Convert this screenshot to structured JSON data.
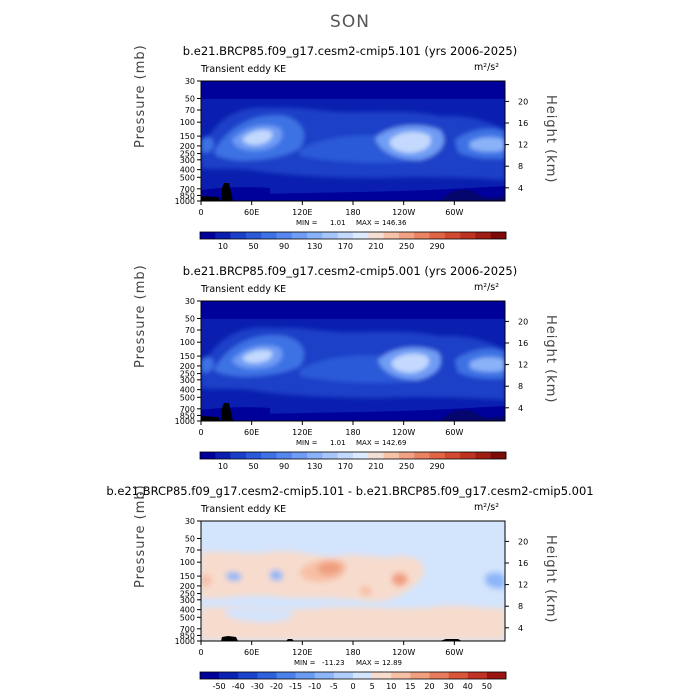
{
  "figure_title": "SON",
  "chart_data": [
    {
      "type": "heatmap",
      "title": "b.e21.BRCP85.f09_g17.cesm2-cmip5.101 (yrs 2006-2025)",
      "variable": "Transient eddy KE",
      "units": "m²/s²",
      "xlabel": "",
      "ylabel": "Pressure (mb)",
      "y2label": "Height (km)",
      "x_ticks": [
        "0",
        "60E",
        "120E",
        "180",
        "120W",
        "60W"
      ],
      "y_ticks": [
        "30",
        "50",
        "70",
        "100",
        "150",
        "200",
        "250",
        "300",
        "400",
        "500",
        "700",
        "850",
        "1000"
      ],
      "y2_ticks": [
        "20",
        "16",
        "12",
        "8",
        "4"
      ],
      "stats": {
        "min_label": "MIN =",
        "min": "1.01",
        "max_label": "MAX = 146.36"
      },
      "colorbar_labels": [
        "10",
        "50",
        "90",
        "130",
        "170",
        "210",
        "250",
        "290"
      ],
      "colorbar_colors": [
        "#00009a",
        "#0a1fb0",
        "#1a3fc8",
        "#2a5ad8",
        "#3d72e4",
        "#5587ee",
        "#6f9cf4",
        "#8ab2f8",
        "#a6c6fb",
        "#c3d9fd",
        "#dde9fd",
        "#f4ddd3",
        "#f6c2a8",
        "#f2a284",
        "#ea8362",
        "#e06545",
        "#d1492e",
        "#bd3220",
        "#a01d14",
        "#7d0c08"
      ]
    },
    {
      "type": "heatmap",
      "title": "b.e21.BRCP85.f09_g17.cesm2-cmip5.001 (yrs 2006-2025)",
      "variable": "Transient eddy KE",
      "units": "m²/s²",
      "xlabel": "",
      "ylabel": "Pressure (mb)",
      "y2label": "Height (km)",
      "x_ticks": [
        "0",
        "60E",
        "120E",
        "180",
        "120W",
        "60W"
      ],
      "y_ticks": [
        "30",
        "50",
        "70",
        "100",
        "150",
        "200",
        "250",
        "300",
        "400",
        "500",
        "700",
        "850",
        "1000"
      ],
      "y2_ticks": [
        "20",
        "16",
        "12",
        "8",
        "4"
      ],
      "stats": {
        "min_label": "MIN =",
        "min": "1.01",
        "max_label": "MAX = 142.69"
      },
      "colorbar_labels": [
        "10",
        "50",
        "90",
        "130",
        "170",
        "210",
        "250",
        "290"
      ],
      "colorbar_colors": [
        "#00009a",
        "#0a1fb0",
        "#1a3fc8",
        "#2a5ad8",
        "#3d72e4",
        "#5587ee",
        "#6f9cf4",
        "#8ab2f8",
        "#a6c6fb",
        "#c3d9fd",
        "#dde9fd",
        "#f4ddd3",
        "#f6c2a8",
        "#f2a284",
        "#ea8362",
        "#e06545",
        "#d1492e",
        "#bd3220",
        "#a01d14",
        "#7d0c08"
      ]
    },
    {
      "type": "heatmap",
      "title": "b.e21.BRCP85.f09_g17.cesm2-cmip5.101 - b.e21.BRCP85.f09_g17.cesm2-cmip5.001",
      "variable": "Transient eddy KE",
      "units": "m²/s²",
      "xlabel": "",
      "ylabel": "Pressure (mb)",
      "y2label": "Height (km)",
      "x_ticks": [
        "0",
        "60E",
        "120E",
        "180",
        "120W",
        "60W"
      ],
      "y_ticks": [
        "30",
        "50",
        "70",
        "100",
        "150",
        "200",
        "250",
        "300",
        "400",
        "500",
        "700",
        "850",
        "1000"
      ],
      "y2_ticks": [
        "20",
        "16",
        "12",
        "8",
        "4"
      ],
      "stats": {
        "min_label": "MIN =",
        "min": "-11.23",
        "max_label": "MAX = 12.89"
      },
      "colorbar_labels": [
        "-50",
        "-40",
        "-30",
        "-20",
        "-15",
        "-10",
        "-5",
        "0",
        "5",
        "10",
        "15",
        "20",
        "30",
        "40",
        "50"
      ],
      "colorbar_colors": [
        "#00009a",
        "#0a22b4",
        "#1a44cc",
        "#2e62dc",
        "#4a80ea",
        "#6a9cf2",
        "#8cb6f8",
        "#b0cefb",
        "#d3e4fd",
        "#f7dccd",
        "#f7c0a6",
        "#f09f80",
        "#e67c5c",
        "#d9563a",
        "#c23224",
        "#9a150f"
      ]
    }
  ]
}
